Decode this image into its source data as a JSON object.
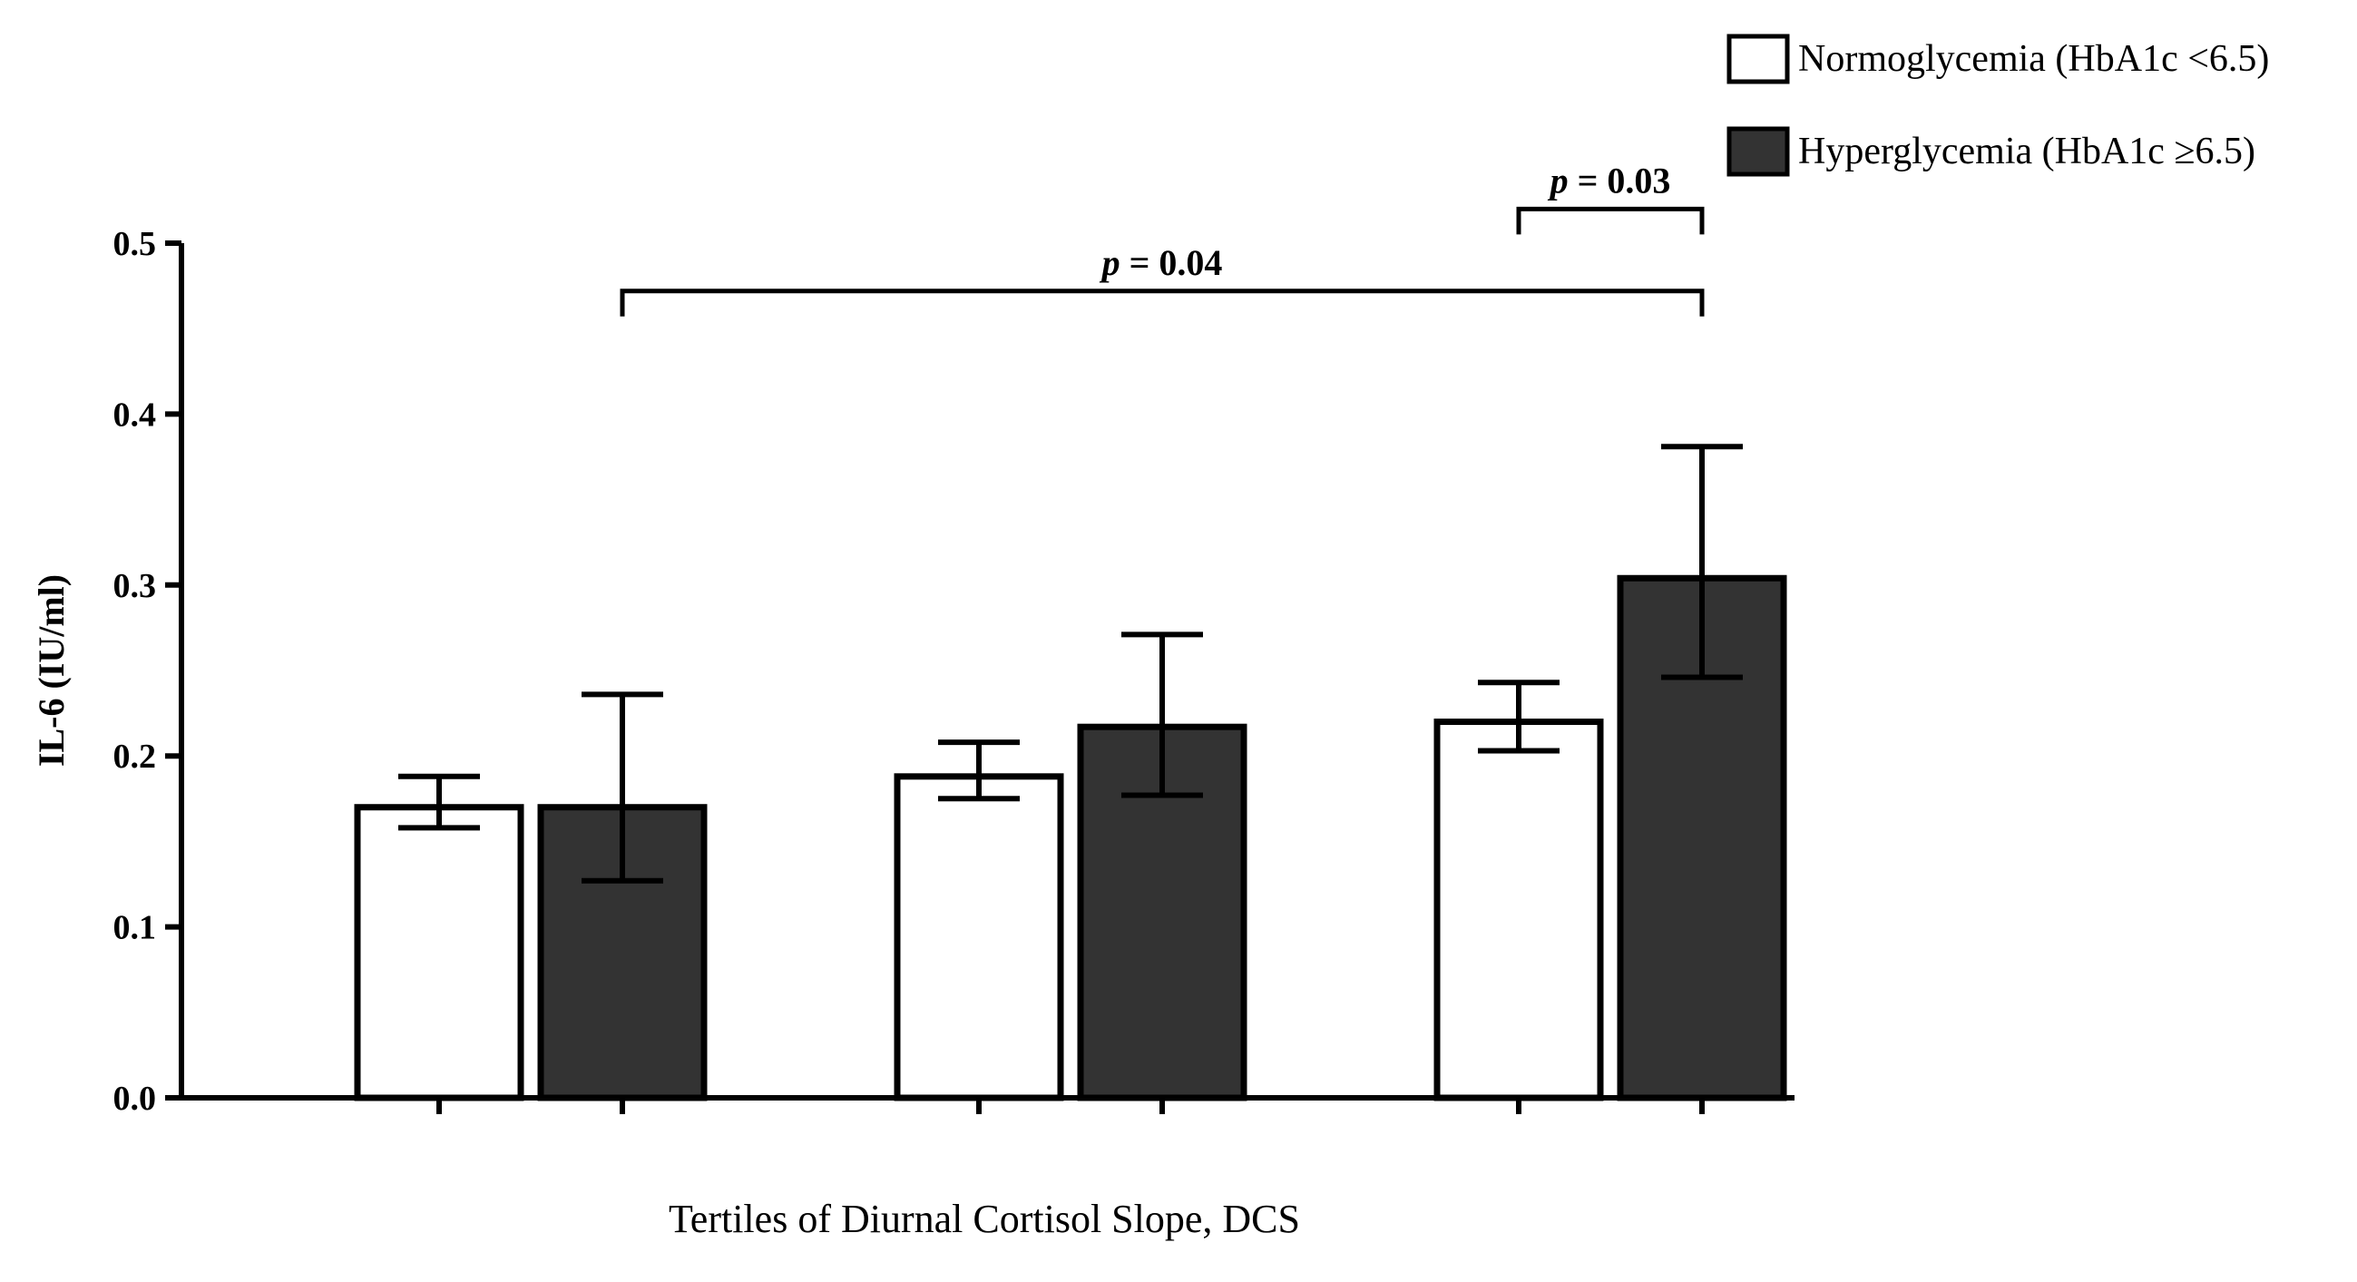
{
  "chart_data": {
    "type": "bar",
    "title": "",
    "xlabel": "Tertiles of Diurnal Cortisol  Slope, DCS",
    "ylabel": "IL-6 (IU/ml)",
    "ylim": [
      0,
      0.5
    ],
    "yticks": [
      "0.0",
      "0.1",
      "0.2",
      "0.3",
      "0.4",
      "0.5"
    ],
    "categories": [
      "",
      "",
      ""
    ],
    "series": [
      {
        "name": "Normoglycemia (HbA1c <6.5)",
        "color": "#ffffff",
        "values": [
          0.17,
          0.188,
          0.22
        ],
        "err_low": [
          0.158,
          0.175,
          0.203
        ],
        "err_high": [
          0.188,
          0.208,
          0.243
        ]
      },
      {
        "name": "Hyperglycemia (HbA1c ≥6.5)",
        "color": "#333333",
        "values": [
          0.17,
          0.217,
          0.304
        ],
        "err_low": [
          0.127,
          0.177,
          0.246
        ],
        "err_high": [
          0.236,
          0.271,
          0.381
        ]
      }
    ],
    "legend_position": "top-right",
    "significance": [
      {
        "p_label": "p",
        "value_label": " = 0.04",
        "from": [
          0,
          1
        ],
        "to": [
          2,
          1
        ],
        "y": 0.472
      },
      {
        "p_label": "p",
        "value_label": " = 0.03",
        "from": [
          2,
          0
        ],
        "to": [
          2,
          1
        ],
        "y": 0.52
      }
    ]
  }
}
